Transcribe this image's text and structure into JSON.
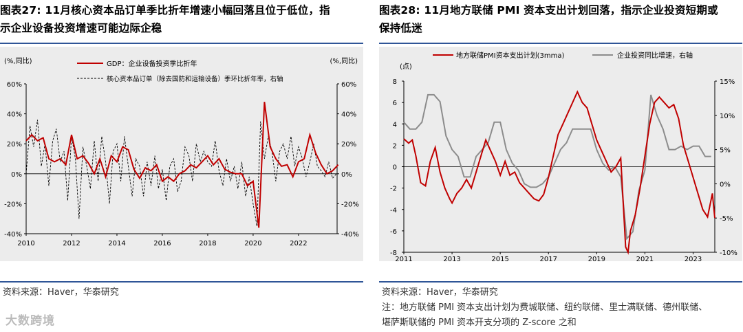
{
  "left": {
    "title_line1": "图表27:  11月核心资本品订单季比折年增速小幅回落且位于低位，指",
    "title_line2": "示企业设备投资增速可能边际企稳",
    "source": "资料来源：Haver，华泰研究",
    "colors": {
      "gdp": "#c00000",
      "orders": "#000000",
      "axis": "#000000"
    }
  },
  "right": {
    "title_line1": "图表28:  11月地方联储 PMI 资本支出计划回落，指示企业投资短期或",
    "title_line2": "保持低迷",
    "source": "资料来源：Haver，华泰研究",
    "note_line1": "注：地方联储 PMI 资本支出计划为费城联储、纽约联储、里士满联储、德州联储、",
    "note_line2": "堪萨斯联储的 PMI 资本开支分项的 Z-score 之和",
    "colors": {
      "pmi": "#c00000",
      "invest": "#8c8c8c",
      "axis": "#000000"
    }
  },
  "watermark": "大数跨境",
  "chart_data": [
    {
      "type": "line",
      "title": "11月核心资本品订单季比折年增速小幅回落且位于低位",
      "ylabel_left": "(%,同比)",
      "ylabel_right": "(%,同比)",
      "ylim": [
        -40,
        60
      ],
      "yticks": [
        -40,
        -20,
        0,
        20,
        40,
        60
      ],
      "ytick_labels_left": [
        "-40%",
        "-20%",
        "0%",
        "20%",
        "40%",
        "60%"
      ],
      "ytick_labels_right": [
        "-40%",
        "-20%",
        "0%",
        "20%",
        "40%",
        "60%"
      ],
      "xlim": [
        2010,
        2023.7
      ],
      "xticks": [
        2010,
        2012,
        2014,
        2016,
        2018,
        2020,
        2022
      ],
      "xtick_labels": [
        "2010",
        "2012",
        "2014",
        "2016",
        "2018",
        "2020",
        "2022"
      ],
      "series": [
        {
          "name": "GDP：企业设备投资季比折年",
          "axis": "left",
          "style": "solid",
          "x": [
            2010.0,
            2010.25,
            2010.5,
            2010.75,
            2011.0,
            2011.25,
            2011.5,
            2011.75,
            2012.0,
            2012.25,
            2012.5,
            2012.75,
            2013.0,
            2013.25,
            2013.5,
            2013.75,
            2014.0,
            2014.25,
            2014.5,
            2014.75,
            2015.0,
            2015.25,
            2015.5,
            2015.75,
            2016.0,
            2016.25,
            2016.5,
            2016.75,
            2017.0,
            2017.25,
            2017.5,
            2017.75,
            2018.0,
            2018.25,
            2018.5,
            2018.75,
            2019.0,
            2019.25,
            2019.5,
            2019.75,
            2020.0,
            2020.25,
            2020.5,
            2020.75,
            2021.0,
            2021.25,
            2021.5,
            2021.75,
            2022.0,
            2022.25,
            2022.5,
            2022.75,
            2023.0,
            2023.25,
            2023.5,
            2023.75
          ],
          "values": [
            22,
            26,
            22,
            24,
            10,
            8,
            10,
            6,
            26,
            10,
            12,
            7,
            0,
            10,
            -2,
            12,
            8,
            18,
            16,
            3,
            -3,
            4,
            2,
            6,
            -5,
            -2,
            -5,
            0,
            2,
            6,
            4,
            8,
            12,
            6,
            10,
            3,
            1,
            0,
            0,
            -8,
            -5,
            -36,
            48,
            18,
            10,
            5,
            6,
            -2,
            8,
            10,
            26,
            14,
            6,
            0,
            2,
            6
          ]
        },
        {
          "name": "核心资本品订单（除去国防和运输设备）季环比折年率，右轴",
          "axis": "right",
          "style": "dashed",
          "x": [
            2010.0,
            2010.17,
            2010.33,
            2010.5,
            2010.67,
            2010.83,
            2011.0,
            2011.17,
            2011.33,
            2011.5,
            2011.67,
            2011.83,
            2012.0,
            2012.17,
            2012.33,
            2012.5,
            2012.67,
            2012.83,
            2013.0,
            2013.17,
            2013.33,
            2013.5,
            2013.67,
            2013.83,
            2014.0,
            2014.17,
            2014.33,
            2014.5,
            2014.67,
            2014.83,
            2015.0,
            2015.17,
            2015.33,
            2015.5,
            2015.67,
            2015.83,
            2016.0,
            2016.17,
            2016.33,
            2016.5,
            2016.67,
            2016.83,
            2017.0,
            2017.17,
            2017.33,
            2017.5,
            2017.67,
            2017.83,
            2018.0,
            2018.17,
            2018.33,
            2018.5,
            2018.67,
            2018.83,
            2019.0,
            2019.17,
            2019.33,
            2019.5,
            2019.67,
            2019.83,
            2020.0,
            2020.17,
            2020.33,
            2020.5,
            2020.67,
            2020.83,
            2021.0,
            2021.17,
            2021.33,
            2021.5,
            2021.67,
            2021.83,
            2022.0,
            2022.17,
            2022.33,
            2022.5,
            2022.67,
            2022.83,
            2023.0,
            2023.17,
            2023.33,
            2023.5,
            2023.67
          ],
          "values": [
            0,
            32,
            18,
            36,
            5,
            20,
            -8,
            22,
            30,
            8,
            15,
            -18,
            25,
            10,
            -30,
            18,
            5,
            -10,
            22,
            -5,
            25,
            8,
            -20,
            15,
            20,
            -5,
            25,
            5,
            -15,
            10,
            5,
            -15,
            8,
            -8,
            12,
            -10,
            3,
            -18,
            5,
            10,
            -12,
            -5,
            18,
            12,
            -5,
            20,
            8,
            15,
            8,
            5,
            22,
            2,
            -8,
            10,
            -5,
            5,
            -10,
            8,
            -15,
            -2,
            -20,
            -35,
            35,
            10,
            25,
            15,
            -5,
            15,
            20,
            10,
            25,
            5,
            18,
            10,
            -2,
            8,
            20,
            5,
            2,
            -2,
            8,
            -3,
            0
          ]
        }
      ],
      "legend": [
        "GDP：企业设备投资季比折年",
        "核心资本品订单（除去国防和运输设备）季环比折年率，右轴"
      ]
    },
    {
      "type": "line",
      "title": "11月地方联储 PMI 资本支出计划回落",
      "ylabel_left": "(点)",
      "ylim_left": [
        -8,
        8
      ],
      "yticks_left": [
        -8,
        -6,
        -4,
        -2,
        0,
        2,
        4,
        6,
        8
      ],
      "ytick_labels_left": [
        "-8",
        "-6",
        "-4",
        "-2",
        "0",
        "2",
        "4",
        "6",
        "8"
      ],
      "ylim_right": [
        -10,
        15
      ],
      "yticks_right": [
        -10,
        -5,
        0,
        5,
        10,
        15
      ],
      "ytick_labels_right": [
        "-10%",
        "-5%",
        "0%",
        "5%",
        "10%",
        "15%"
      ],
      "xlim": [
        2011,
        2023.9
      ],
      "xticks": [
        2011,
        2013,
        2015,
        2017,
        2019,
        2021,
        2023
      ],
      "xtick_labels": [
        "2011",
        "2013",
        "2015",
        "2017",
        "2019",
        "2021",
        "2023"
      ],
      "series": [
        {
          "name": "地方联储PMI资本支出计划(3mma)",
          "axis": "left",
          "style": "solid",
          "x": [
            2011.0,
            2011.2,
            2011.35,
            2011.5,
            2011.7,
            2011.9,
            2012.1,
            2012.3,
            2012.5,
            2012.7,
            2012.9,
            2013.0,
            2013.2,
            2013.4,
            2013.6,
            2013.8,
            2014.0,
            2014.2,
            2014.4,
            2014.6,
            2014.8,
            2015.0,
            2015.2,
            2015.4,
            2015.6,
            2015.8,
            2016.0,
            2016.2,
            2016.4,
            2016.6,
            2016.8,
            2017.0,
            2017.2,
            2017.4,
            2017.6,
            2017.8,
            2018.0,
            2018.2,
            2018.4,
            2018.6,
            2018.8,
            2019.0,
            2019.2,
            2019.4,
            2019.6,
            2019.8,
            2020.0,
            2020.2,
            2020.3,
            2020.4,
            2020.6,
            2020.8,
            2021.0,
            2021.2,
            2021.4,
            2021.6,
            2021.8,
            2022.0,
            2022.2,
            2022.4,
            2022.6,
            2022.8,
            2023.0,
            2023.2,
            2023.4,
            2023.6,
            2023.8,
            2023.9
          ],
          "values": [
            2.6,
            2.2,
            2.5,
            1.0,
            -1.5,
            -1.8,
            0.5,
            1.8,
            -0.5,
            -2.0,
            -3.0,
            -3.4,
            -2.5,
            -2.0,
            -1.2,
            -2.0,
            -0.5,
            1.0,
            2.5,
            1.5,
            0.5,
            -0.8,
            0.5,
            -0.8,
            -0.5,
            -1.5,
            -2.0,
            -2.5,
            -3.0,
            -3.2,
            -2.6,
            -1.0,
            1.0,
            3.0,
            4.0,
            5.0,
            6.0,
            7.0,
            6.0,
            5.5,
            4.0,
            2.5,
            1.5,
            0.5,
            -0.5,
            0.0,
            0.8,
            -7.5,
            -8.0,
            -6.0,
            -4.5,
            -2.0,
            1.0,
            4.0,
            6.0,
            6.5,
            6.0,
            5.5,
            5.8,
            4.5,
            2.0,
            0.5,
            -1.0,
            -2.5,
            -4.0,
            -4.7,
            -2.5,
            -4.8
          ]
        },
        {
          "name": "企业投资同比增速，右轴",
          "axis": "right",
          "style": "solid",
          "x": [
            2011.0,
            2011.25,
            2011.5,
            2011.75,
            2012.0,
            2012.25,
            2012.5,
            2012.75,
            2013.0,
            2013.25,
            2013.5,
            2013.75,
            2014.0,
            2014.25,
            2014.5,
            2014.75,
            2015.0,
            2015.25,
            2015.5,
            2015.75,
            2016.0,
            2016.25,
            2016.5,
            2016.75,
            2017.0,
            2017.25,
            2017.5,
            2017.75,
            2018.0,
            2018.25,
            2018.5,
            2018.75,
            2019.0,
            2019.25,
            2019.5,
            2019.75,
            2020.0,
            2020.25,
            2020.5,
            2020.75,
            2021.0,
            2021.25,
            2021.5,
            2021.75,
            2022.0,
            2022.25,
            2022.5,
            2022.75,
            2023.0,
            2023.25,
            2023.5,
            2023.75
          ],
          "values": [
            9,
            8,
            8,
            9,
            13,
            13,
            12,
            7,
            5,
            4,
            1,
            1,
            4,
            5,
            6,
            9,
            9,
            5,
            3,
            2,
            0,
            -0.5,
            -0.5,
            0,
            1,
            3,
            5,
            6,
            8,
            8,
            8,
            8,
            5,
            3,
            2,
            2.5,
            1,
            -8,
            -7,
            -1,
            2,
            13,
            10,
            8,
            5,
            5,
            5.5,
            5,
            5.5,
            5.5,
            4,
            4
          ]
        }
      ],
      "legend": [
        "地方联储PMI资本支出计划(3mma)",
        "企业投资同比增速，右轴"
      ]
    }
  ]
}
